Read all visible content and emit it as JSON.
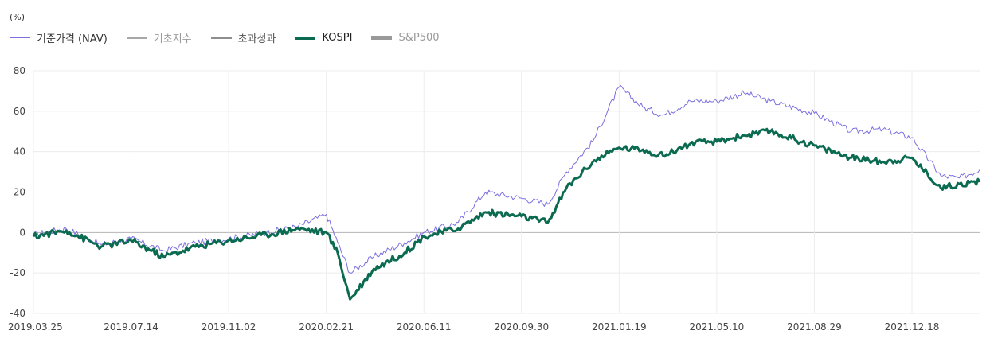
{
  "chart_data": {
    "type": "line",
    "unit_label": "(%)",
    "series": [
      {
        "name": "기준가격 (NAV)",
        "color": "#7b6fe0",
        "line_width": 1,
        "x": [
          "2019.03.25",
          "2019.05.01",
          "2019.06.10",
          "2019.07.14",
          "2019.08.20",
          "2019.09.25",
          "2019.11.02",
          "2019.12.15",
          "2020.01.20",
          "2020.02.21",
          "2020.03.05",
          "2020.03.19",
          "2020.04.15",
          "2020.05.20",
          "2020.06.11",
          "2020.07.20",
          "2020.08.20",
          "2020.09.30",
          "2020.10.30",
          "2020.11.20",
          "2020.12.20",
          "2021.01.19",
          "2021.02.15",
          "2021.03.10",
          "2021.04.10",
          "2021.05.10",
          "2021.06.10",
          "2021.07.10",
          "2021.08.29",
          "2021.10.10",
          "2021.11.15",
          "2021.12.18",
          "2022.01.20",
          "2022.02.10",
          "2022.03.05"
        ],
        "values": [
          -1,
          2,
          -6,
          -3,
          -9,
          -5,
          -3,
          0,
          3,
          9,
          -5,
          -20,
          -12,
          -5,
          0,
          5,
          20,
          17,
          14,
          30,
          45,
          72,
          62,
          58,
          65,
          65,
          69,
          65,
          59,
          50,
          51,
          47,
          28,
          27,
          31
        ]
      },
      {
        "name": "기초지수",
        "color": "#a8a8a8",
        "line_width": 2,
        "x": [],
        "values": []
      },
      {
        "name": "초과성과",
        "color": "#8e8e8e",
        "line_width": 2,
        "x": [],
        "values": []
      },
      {
        "name": "KOSPI",
        "color": "#0b6b50",
        "line_width": 3,
        "x": [
          "2019.03.25",
          "2019.05.01",
          "2019.06.10",
          "2019.07.14",
          "2019.08.20",
          "2019.09.25",
          "2019.11.02",
          "2019.12.15",
          "2020.01.20",
          "2020.02.21",
          "2020.03.05",
          "2020.03.19",
          "2020.04.15",
          "2020.05.20",
          "2020.06.11",
          "2020.07.20",
          "2020.08.20",
          "2020.09.30",
          "2020.10.30",
          "2020.11.20",
          "2020.12.20",
          "2021.01.19",
          "2021.02.15",
          "2021.03.10",
          "2021.04.10",
          "2021.05.10",
          "2021.06.10",
          "2021.07.10",
          "2021.08.29",
          "2021.10.10",
          "2021.11.15",
          "2021.12.18",
          "2022.01.20",
          "2022.02.10",
          "2022.03.05"
        ],
        "values": [
          -2,
          1,
          -7,
          -4,
          -12,
          -7,
          -4,
          -1,
          2,
          0,
          -10,
          -33,
          -18,
          -10,
          -2,
          2,
          10,
          8,
          5,
          22,
          35,
          42,
          41,
          38,
          44,
          45,
          48,
          50,
          43,
          37,
          35,
          37,
          22,
          24,
          25
        ]
      },
      {
        "name": "S&P500",
        "color": "#999999",
        "line_width": 4,
        "x": [],
        "values": []
      }
    ],
    "x_ticks": [
      "2019.03.25",
      "2019.07.14",
      "2019.11.02",
      "2020.02.21",
      "2020.06.11",
      "2020.09.30",
      "2021.01.19",
      "2021.05.10",
      "2021.08.29",
      "2021.12.18"
    ],
    "y_ticks": [
      80,
      60,
      40,
      20,
      0,
      -20,
      -40
    ],
    "ylim": [
      -40,
      80
    ],
    "xlim": [
      "2019.03.25",
      "2022.03.05"
    ],
    "grid": true,
    "legend_position": "top-left"
  }
}
